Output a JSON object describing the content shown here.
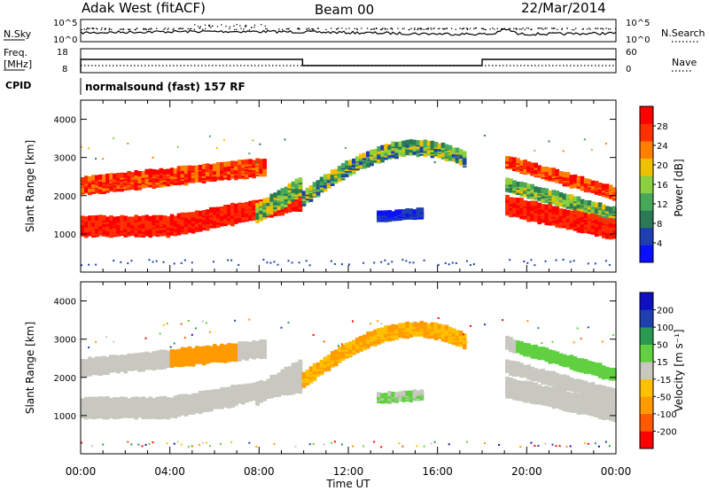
{
  "header": {
    "title": "Adak West (fitACF)",
    "beam": "Beam 00",
    "date": "22/Mar/2014"
  },
  "panels": {
    "nsky": {
      "left_label": "N.Sky",
      "right_label": "N.Search",
      "left_ticks": [
        "10^5",
        "10^0"
      ],
      "right_ticks": [
        "10^5",
        "10^0"
      ]
    },
    "freq": {
      "left_label_1": "Freq.",
      "left_label_2": "[MHz]",
      "right_label": "Nave",
      "left_ticks": [
        "18",
        "8"
      ],
      "right_ticks": [
        "60",
        "0"
      ]
    },
    "cpid": {
      "label": "CPID",
      "text": "normalsound (fast) 157 RF"
    }
  },
  "x_axis": {
    "label": "Time UT",
    "ticks": [
      "00:00",
      "04:00",
      "08:00",
      "12:00",
      "16:00",
      "20:00",
      "00:00"
    ]
  },
  "colors": {
    "power_scale": [
      "#0a10ff",
      "#1f3fb0",
      "#2a7a55",
      "#48a85a",
      "#8ccf40",
      "#f0c000",
      "#ff8000",
      "#ff3000",
      "#ff0000"
    ],
    "velocity_scale": [
      "#ff0000",
      "#ff5a00",
      "#ff9a00",
      "#ffc000",
      "#c8c8c0",
      "#60d040",
      "#2a9a50",
      "#1f3fb0",
      "#1010c0"
    ]
  },
  "chart_data": [
    {
      "type": "heatmap",
      "name": "power",
      "ylabel": "Slant Range [km]",
      "y_ticks": [
        "1000",
        "2000",
        "3000",
        "4000"
      ],
      "ylim": [
        0,
        4500
      ],
      "x_range_hours": [
        0,
        24
      ],
      "colorbar_label": "Power [dB]",
      "colorbar_ticks": [
        "4",
        "8",
        "12",
        "16",
        "20",
        "24",
        "28"
      ],
      "colorbar_range": [
        0,
        32
      ]
    },
    {
      "type": "heatmap",
      "name": "velocity",
      "ylabel": "Slant Range [km]",
      "y_ticks": [
        "1000",
        "2000",
        "3000",
        "4000"
      ],
      "ylim": [
        0,
        4500
      ],
      "x_range_hours": [
        0,
        24
      ],
      "colorbar_label": "Velocity [m s⁻¹]",
      "colorbar_ticks": [
        "200",
        "100",
        "50",
        "15",
        "-15",
        "-50",
        "-100",
        "-200"
      ]
    }
  ]
}
